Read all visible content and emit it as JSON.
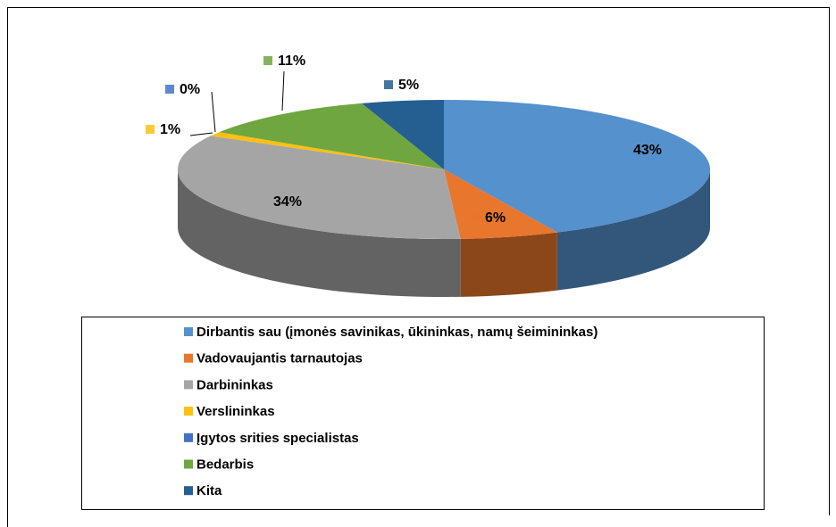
{
  "chart_data": {
    "type": "pie",
    "categories": [
      "Dirbantis sau (įmonės savinikas, ūkininkas, namų šeimininkas)",
      "Vadovaujantis tarnautojas",
      "Darbininkas",
      "Verslininkas",
      "Įgytos srities specialistas",
      "Bedarbis",
      "Kita"
    ],
    "values": [
      43,
      6,
      34,
      1,
      0,
      11,
      5
    ],
    "value_labels": [
      "43%",
      "6%",
      "34%",
      "1%",
      "0%",
      "11%",
      "5%"
    ],
    "colors": [
      "#5591cc",
      "#e8762c",
      "#a5a5a5",
      "#fdc010",
      "#4472c4",
      "#6fa640",
      "#255e91"
    ]
  }
}
